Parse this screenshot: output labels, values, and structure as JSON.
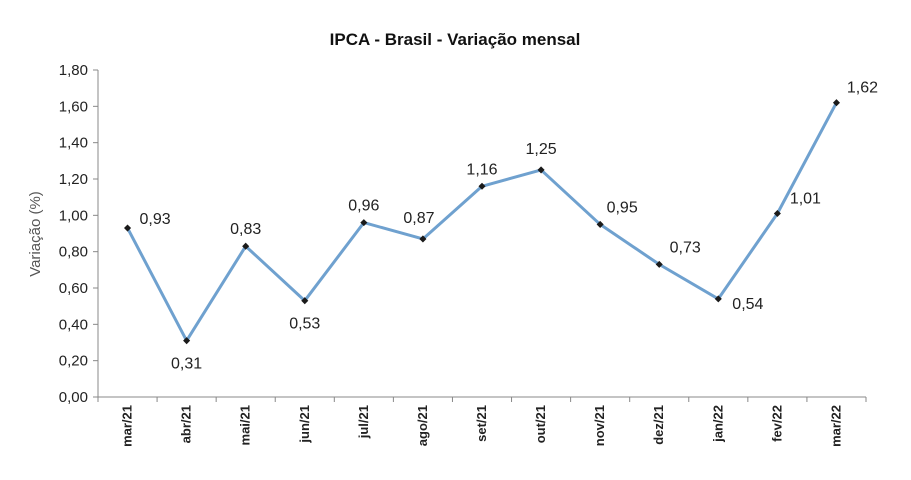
{
  "chart_data": {
    "type": "line",
    "title": "IPCA - Brasil - Variação mensal",
    "xlabel": "",
    "ylabel": "Variação (%)",
    "categories": [
      "mar/21",
      "abr/21",
      "mai/21",
      "jun/21",
      "jul/21",
      "ago/21",
      "set/21",
      "out/21",
      "nov/21",
      "dez/21",
      "jan/22",
      "fev/22",
      "mar/22"
    ],
    "values": [
      0.93,
      0.31,
      0.83,
      0.53,
      0.96,
      0.87,
      1.16,
      1.25,
      0.95,
      0.73,
      0.54,
      1.01,
      1.62
    ],
    "data_labels": [
      "0,93",
      "0,31",
      "0,83",
      "0,53",
      "0,96",
      "0,87",
      "1,16",
      "1,25",
      "0,95",
      "0,73",
      "0,54",
      "1,01",
      "1,62"
    ],
    "ylim": [
      0,
      1.8
    ],
    "yticks": [
      "0,00",
      "0,20",
      "0,40",
      "0,60",
      "0,80",
      "1,00",
      "1,20",
      "1,40",
      "1,60",
      "1,80"
    ],
    "grid": false,
    "legend": "none",
    "line_color": "#6fa1cf",
    "marker_color": "#1a1a1a"
  }
}
